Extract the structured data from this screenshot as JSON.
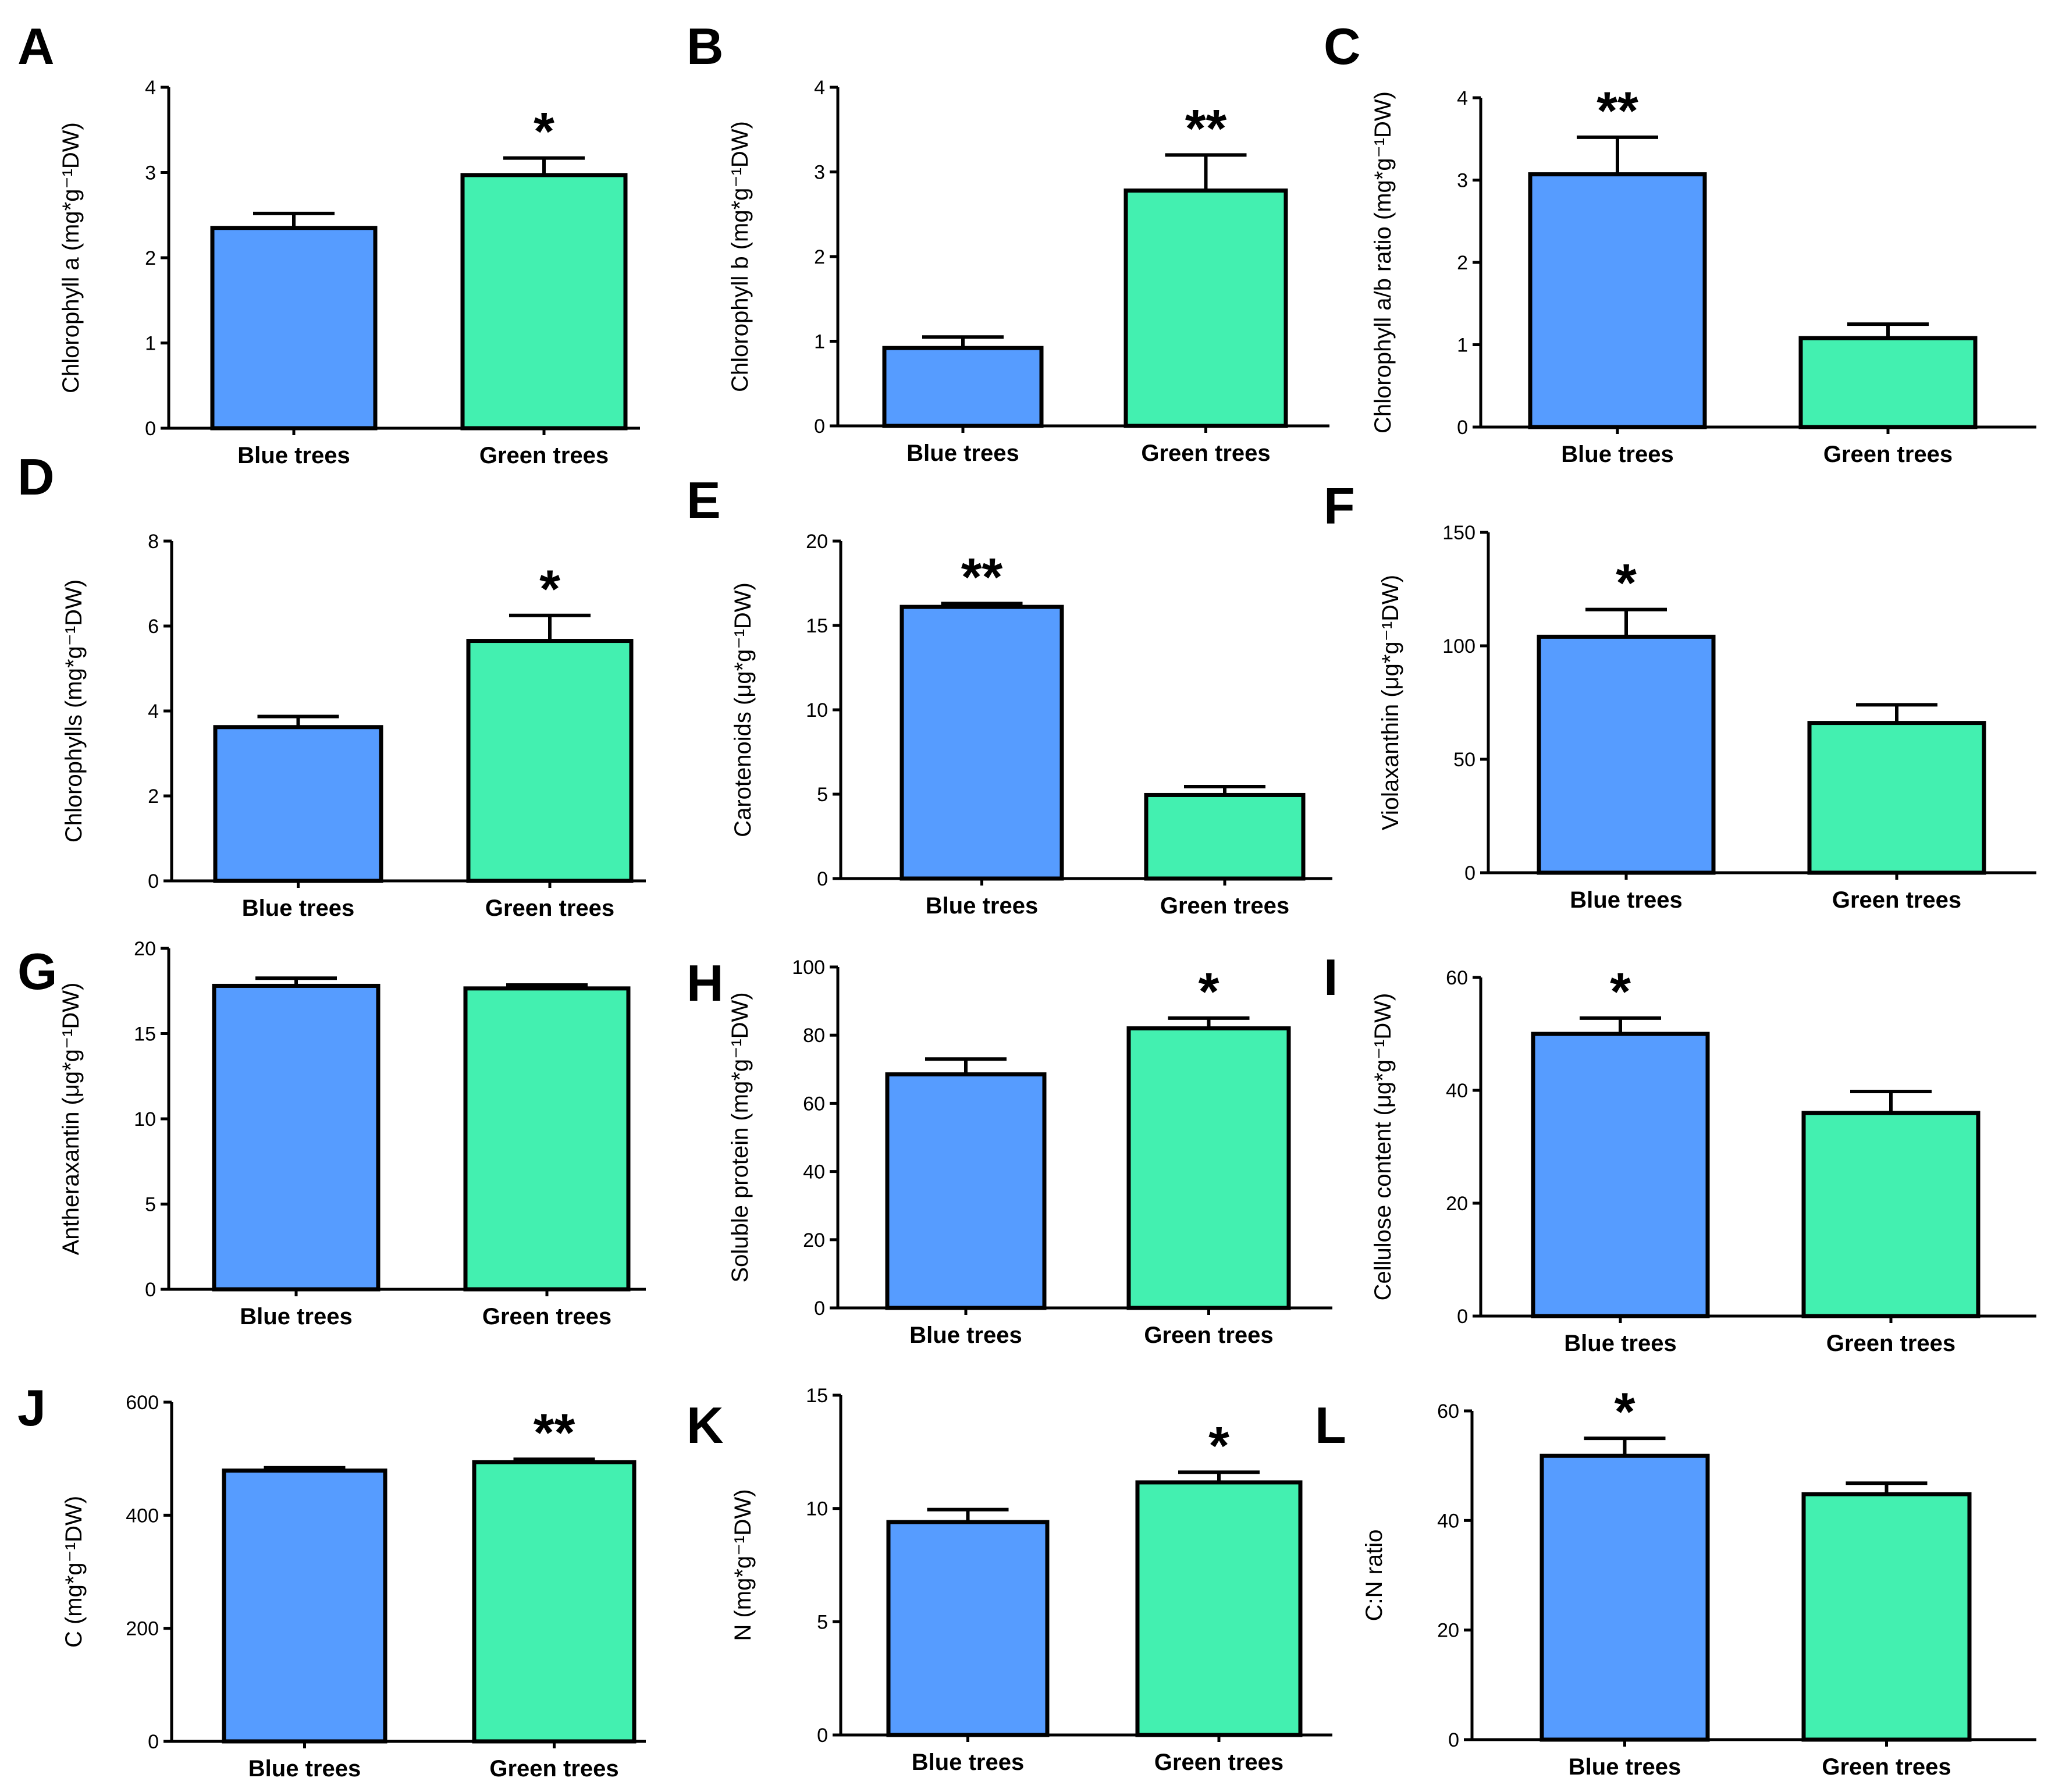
{
  "colors": {
    "blue": "#569CFF",
    "green": "#43F0B0"
  },
  "chart_data": [
    {
      "panel": "A",
      "type": "bar",
      "ylabel": "Chlorophyll  a (mg*g⁻¹DW)",
      "ylim": [
        0,
        4
      ],
      "ticks": [
        "0",
        "1",
        "2",
        "3",
        "4"
      ],
      "tick_values": [
        0,
        1,
        2,
        3,
        4
      ],
      "categories": [
        "Blue trees",
        "Green trees"
      ],
      "values": [
        2.35,
        2.97
      ],
      "errors": [
        0.17,
        0.2
      ],
      "significance": [
        "",
        "*"
      ],
      "sig_index": 1
    },
    {
      "panel": "B",
      "type": "bar",
      "ylabel": "Chlorophyll  b (mg*g⁻¹DW)",
      "ylim": [
        0,
        4
      ],
      "ticks": [
        "0",
        "1",
        "2",
        "3",
        "4"
      ],
      "tick_values": [
        0,
        1,
        2,
        3,
        4
      ],
      "categories": [
        "Blue trees",
        "Green trees"
      ],
      "values": [
        0.92,
        2.78
      ],
      "errors": [
        0.13,
        0.42
      ],
      "significance": [
        "",
        "**"
      ],
      "sig_index": 1
    },
    {
      "panel": "C",
      "type": "bar",
      "ylabel": "Chlorophyll  a/b ratio (mg*g⁻¹DW)",
      "ylim": [
        0,
        4
      ],
      "ticks": [
        "0",
        "1",
        "2",
        "3",
        "4"
      ],
      "tick_values": [
        0,
        1,
        2,
        3,
        4
      ],
      "categories": [
        "Blue trees",
        "Green trees"
      ],
      "values": [
        3.07,
        1.08
      ],
      "errors": [
        0.45,
        0.17
      ],
      "significance": [
        "**",
        ""
      ],
      "sig_index": 0
    },
    {
      "panel": "D",
      "type": "bar",
      "ylabel": "Chlorophylls  (mg*g⁻¹DW)",
      "ylim": [
        0,
        8
      ],
      "ticks": [
        "0",
        "2",
        "4",
        "6",
        "8"
      ],
      "tick_values": [
        0,
        2,
        4,
        6,
        8
      ],
      "categories": [
        "Blue trees",
        "Green trees"
      ],
      "values": [
        3.62,
        5.65
      ],
      "errors": [
        0.25,
        0.6
      ],
      "significance": [
        "",
        "*"
      ],
      "sig_index": 1
    },
    {
      "panel": "E",
      "type": "bar",
      "ylabel": "Carotenoids (μg*g⁻¹DW)",
      "ylim": [
        0,
        20
      ],
      "ticks": [
        "0",
        "5",
        "10",
        "15",
        "20"
      ],
      "tick_values": [
        0,
        5,
        10,
        15,
        20
      ],
      "categories": [
        "Blue trees",
        "Green trees"
      ],
      "values": [
        16.1,
        4.95
      ],
      "errors": [
        0.2,
        0.5
      ],
      "significance": [
        "**",
        ""
      ],
      "sig_index": 0
    },
    {
      "panel": "F",
      "type": "bar",
      "ylabel": "Violaxanthin  (μg*g⁻¹DW)",
      "ylim": [
        0,
        150
      ],
      "ticks": [
        "0",
        "50",
        "100",
        "150"
      ],
      "tick_values": [
        0,
        50,
        100,
        150
      ],
      "categories": [
        "Blue trees",
        "Green trees"
      ],
      "values": [
        104,
        66
      ],
      "errors": [
        12,
        8
      ],
      "significance": [
        "*",
        ""
      ],
      "sig_index": 0
    },
    {
      "panel": "G",
      "type": "bar",
      "ylabel": "Antheraxantin (μg*g⁻¹DW)",
      "ylim": [
        0,
        20
      ],
      "ticks": [
        "0",
        "5",
        "10",
        "15",
        "20"
      ],
      "tick_values": [
        0,
        5,
        10,
        15,
        20
      ],
      "categories": [
        "Blue trees",
        "Green trees"
      ],
      "values": [
        17.8,
        17.65
      ],
      "errors": [
        0.45,
        0.2
      ],
      "significance": [
        "",
        ""
      ],
      "sig_index": -1
    },
    {
      "panel": "H",
      "type": "bar",
      "ylabel": "Soluble  protein (mg*g⁻¹DW)",
      "ylim": [
        0,
        100
      ],
      "ticks": [
        "0",
        "20",
        "40",
        "60",
        "80",
        "100"
      ],
      "tick_values": [
        0,
        20,
        40,
        60,
        80,
        100
      ],
      "categories": [
        "Blue trees",
        "Green trees"
      ],
      "values": [
        68.5,
        82
      ],
      "errors": [
        4.5,
        3
      ],
      "significance": [
        "",
        "*"
      ],
      "sig_index": 1
    },
    {
      "panel": "I",
      "type": "bar",
      "ylabel": "Cellulose  content (μg*g⁻¹DW)",
      "ylim": [
        0,
        60
      ],
      "ticks": [
        "0",
        "20",
        "40",
        "60"
      ],
      "tick_values": [
        0,
        20,
        40,
        60
      ],
      "categories": [
        "Blue trees",
        "Green trees"
      ],
      "values": [
        50,
        36
      ],
      "errors": [
        2.8,
        3.8
      ],
      "significance": [
        "*",
        ""
      ],
      "sig_index": 0
    },
    {
      "panel": "J",
      "type": "bar",
      "ylabel": "C (mg*g⁻¹DW)",
      "ylim": [
        0,
        600
      ],
      "ticks": [
        "0",
        "200",
        "400",
        "600"
      ],
      "tick_values": [
        0,
        200,
        400,
        600
      ],
      "categories": [
        "Blue trees",
        "Green trees"
      ],
      "values": [
        479,
        494
      ],
      "errors": [
        5,
        5
      ],
      "significance": [
        "",
        "**"
      ],
      "sig_index": 1
    },
    {
      "panel": "K",
      "type": "bar",
      "ylabel": "N (mg*g⁻¹DW)",
      "ylim": [
        0,
        15
      ],
      "ticks": [
        "0",
        "5",
        "10",
        "15"
      ],
      "tick_values": [
        0,
        5,
        10,
        15
      ],
      "categories": [
        "Blue trees",
        "Green trees"
      ],
      "values": [
        9.4,
        11.15
      ],
      "errors": [
        0.55,
        0.45
      ],
      "significance": [
        "",
        "*"
      ],
      "sig_index": 1
    },
    {
      "panel": "L",
      "type": "bar",
      "ylabel": "C:N ratio",
      "ylim": [
        0,
        60
      ],
      "ticks": [
        "0",
        "20",
        "40",
        "60"
      ],
      "tick_values": [
        0,
        20,
        40,
        60
      ],
      "categories": [
        "Blue trees",
        "Green trees"
      ],
      "values": [
        51.8,
        44.8
      ],
      "errors": [
        3.2,
        2
      ],
      "significance": [
        "*",
        ""
      ],
      "sig_index": 0
    }
  ]
}
